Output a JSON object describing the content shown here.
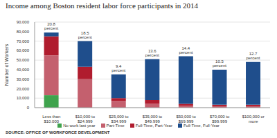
{
  "chart_data": {
    "type": "bar",
    "title": "Income among Boston resident labor force participants in 2014",
    "source": "SOURCE: OFFICE OF WORKFORCE DEVELOPMENT",
    "y_label": "Number of Workers",
    "categories": [
      "Less than $10,000",
      "$10,000 to $24,999",
      "$25,000 to $34,999",
      "$35,000 to $49,999",
      "$50,000 to $69,999",
      "$70,000 to $99,999",
      "$100,000 or more"
    ],
    "annotations": [
      "20.8 percent",
      "18.5 percent",
      "9.4 percent",
      "13.6 percent",
      "14.4 percent",
      "10.5 percent",
      "12.7 percent"
    ],
    "series": [
      {
        "name": "No work last year",
        "color": "#3fa34d",
        "values": [
          13000,
          0,
          0,
          0,
          0,
          0,
          0
        ]
      },
      {
        "name": "Part-Time",
        "color": "#c4606e",
        "values": [
          42000,
          30000,
          7000,
          4000,
          2000,
          1500,
          1500
        ]
      },
      {
        "name": "Full-Time, Part-Year",
        "color": "#b01c2e",
        "values": [
          20000,
          13000,
          3000,
          4000,
          2000,
          1500,
          1500
        ]
      },
      {
        "name": "Full-Time, Full-Year",
        "color": "#1f4e8c",
        "values": [
          4000,
          27000,
          25000,
          43000,
          50000,
          37000,
          45000
        ]
      }
    ],
    "stacked": true,
    "ylim": [
      0,
      90000
    ],
    "yticks": [
      0,
      {
        "value": 10000,
        "label": "10,000"
      },
      {
        "value": 20000,
        "label": "20,000"
      },
      {
        "value": 30000,
        "label": "30,000"
      },
      {
        "value": 40000,
        "label": "40,000"
      },
      {
        "value": 50000,
        "label": "50,000"
      },
      {
        "value": 60000,
        "label": "60,000"
      },
      {
        "value": 70000,
        "label": "70,000"
      },
      {
        "value": 80000,
        "label": "80,000"
      },
      {
        "value": 90000,
        "label": "90,000"
      }
    ],
    "grid": true,
    "legend": "bottom"
  }
}
